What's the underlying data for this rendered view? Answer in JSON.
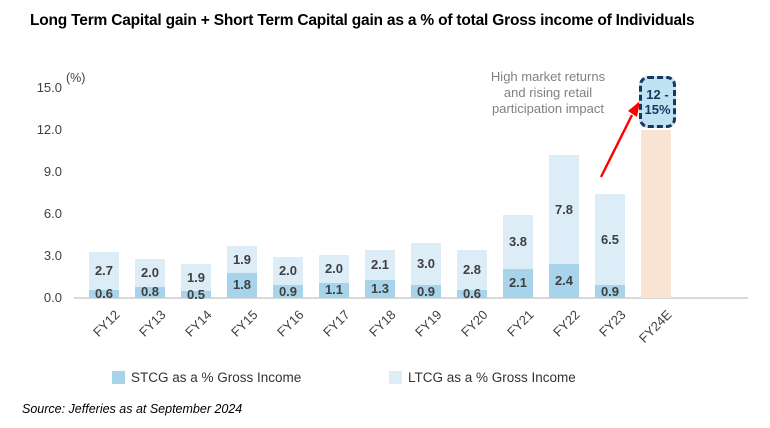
{
  "title": "Long Term Capital gain + Short Term Capital gain as a % of total Gross income of Individuals",
  "chart_data": {
    "type": "bar",
    "stacked": true,
    "unit_label": "(%)",
    "categories": [
      "FY12",
      "FY13",
      "FY14",
      "FY15",
      "FY16",
      "FY17",
      "FY18",
      "FY19",
      "FY20",
      "FY21",
      "FY22",
      "FY23",
      "FY24E"
    ],
    "series": [
      {
        "name": "STCG as a % Gross Income",
        "color": "#a7d4ea",
        "values": [
          0.6,
          0.8,
          0.5,
          1.8,
          0.9,
          1.1,
          1.3,
          0.9,
          0.6,
          2.1,
          2.4,
          0.9
        ]
      },
      {
        "name": "LTCG as a % Gross Income",
        "color": "#ddedf8",
        "values": [
          2.7,
          2.0,
          1.9,
          1.9,
          2.0,
          2.0,
          2.1,
          3.0,
          2.8,
          3.8,
          7.8,
          6.5
        ]
      }
    ],
    "forecast": {
      "category": "FY24E",
      "value": 12.0,
      "label": "12 - 15%",
      "color": "#f9e3d3"
    },
    "yticks": [
      "0.0",
      "3.0",
      "6.0",
      "9.0",
      "12.0",
      "15.0"
    ],
    "ylim": [
      0,
      15
    ],
    "grid": false,
    "legend_position": "bottom"
  },
  "annotation": {
    "lines": [
      "High market returns",
      "and rising retail",
      "participation impact"
    ]
  },
  "callout": {
    "line1": "12 -",
    "line2": "15%"
  },
  "colors": {
    "stcg": "#a7d4ea",
    "ltcg": "#ddedf8",
    "forecast_bar": "#f9e3d3",
    "callout_fill": "#c0e3f3",
    "callout_border": "#17375e",
    "arrow": "#ff0000",
    "axis_line": "#d9d9d9",
    "annotation_text": "#808080"
  },
  "source": "Source: Jefferies as at September 2024"
}
